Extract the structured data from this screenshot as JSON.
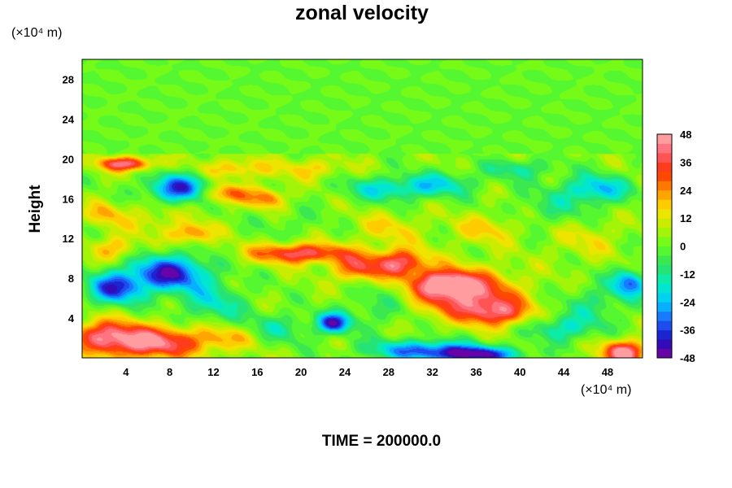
{
  "chart_data": {
    "type": "heatmap",
    "title": "zonal velocity",
    "ylabel": "Height",
    "y_unit": "(×10⁴ m)",
    "x_unit": "(×10⁴ m)",
    "footer": "TIME = 200000.0",
    "xlim": [
      0,
      51.2
    ],
    "ylim": [
      0,
      30
    ],
    "x_ticks": [
      4,
      8,
      12,
      16,
      20,
      24,
      28,
      32,
      36,
      40,
      44,
      48
    ],
    "y_ticks": [
      4,
      8,
      12,
      16,
      20,
      24,
      28
    ],
    "colorbar": {
      "min": -48,
      "max": 48,
      "ticks": [
        48,
        36,
        24,
        12,
        0,
        -12,
        -24,
        -36,
        -48
      ],
      "colors": [
        "#7f00a0",
        "#1a10c0",
        "#2060ff",
        "#00c8ff",
        "#00f0c0",
        "#30e060",
        "#60ff20",
        "#b8f000",
        "#ffe000",
        "#ff9000",
        "#ff3000",
        "#ff6070",
        "#ffb0b0"
      ]
    },
    "field": {
      "background": 3,
      "upper_layer_value": 0,
      "upper_layer_bottom": 20.5,
      "features": [
        {
          "x": 6,
          "y": 1.5,
          "value": 42,
          "sx": 5,
          "sy": 1.6
        },
        {
          "x": 2,
          "y": 2.5,
          "value": 26,
          "sx": 3,
          "sy": 1.5
        },
        {
          "x": 49.5,
          "y": 0.5,
          "value": 46,
          "sx": 2,
          "sy": 1.2
        },
        {
          "x": 36,
          "y": 0.3,
          "value": -42,
          "sx": 4,
          "sy": 0.8
        },
        {
          "x": 31,
          "y": 0.8,
          "value": -32,
          "sx": 5,
          "sy": 1.0
        },
        {
          "x": 23,
          "y": 3.5,
          "value": -42,
          "sx": 1.5,
          "sy": 1.0
        },
        {
          "x": 8,
          "y": 8.5,
          "value": -44,
          "sx": 3.5,
          "sy": 1.8
        },
        {
          "x": 3,
          "y": 7.0,
          "value": -38,
          "sx": 2.5,
          "sy": 1.6
        },
        {
          "x": 12,
          "y": 5.5,
          "value": -18,
          "sx": 3,
          "sy": 2
        },
        {
          "x": 9,
          "y": 17,
          "value": -40,
          "sx": 3,
          "sy": 1.4
        },
        {
          "x": 4,
          "y": 19.5,
          "value": 40,
          "sx": 2.5,
          "sy": 0.7
        },
        {
          "x": 13,
          "y": 16.5,
          "value": 28,
          "sx": 2.5,
          "sy": 1.0
        },
        {
          "x": 17,
          "y": 16,
          "value": 24,
          "sx": 1.5,
          "sy": 1
        },
        {
          "x": 20,
          "y": 10.5,
          "value": 38,
          "sx": 4.5,
          "sy": 1.0
        },
        {
          "x": 29,
          "y": 9.5,
          "value": 38,
          "sx": 2.5,
          "sy": 1.4
        },
        {
          "x": 25,
          "y": 9,
          "value": 28,
          "sx": 2,
          "sy": 1.3
        },
        {
          "x": 35,
          "y": 6.5,
          "value": 40,
          "sx": 4.5,
          "sy": 2.3
        },
        {
          "x": 38,
          "y": 4.5,
          "value": 30,
          "sx": 3,
          "sy": 1.3
        },
        {
          "x": 33,
          "y": 7.5,
          "value": 32,
          "sx": 2.5,
          "sy": 1.2
        },
        {
          "x": 14,
          "y": 19,
          "value": 18,
          "sx": 3,
          "sy": 1
        },
        {
          "x": 21,
          "y": 19,
          "value": 14,
          "sx": 3,
          "sy": 1
        },
        {
          "x": 28,
          "y": 17,
          "value": -22,
          "sx": 4,
          "sy": 1.2
        },
        {
          "x": 33,
          "y": 17.5,
          "value": -18,
          "sx": 3,
          "sy": 1.2
        },
        {
          "x": 47,
          "y": 17,
          "value": -26,
          "sx": 3,
          "sy": 1.4
        },
        {
          "x": 40,
          "y": 19,
          "value": -16,
          "sx": 3,
          "sy": 1
        },
        {
          "x": 43,
          "y": 15,
          "value": -10,
          "sx": 4,
          "sy": 2
        },
        {
          "x": 46,
          "y": 12,
          "value": 10,
          "sx": 3,
          "sy": 2
        },
        {
          "x": 50,
          "y": 7.5,
          "value": -34,
          "sx": 1.5,
          "sy": 1.4
        },
        {
          "x": 44,
          "y": 3,
          "value": -20,
          "sx": 3,
          "sy": 1.3
        },
        {
          "x": 47,
          "y": 5.5,
          "value": -12,
          "sx": 3,
          "sy": 2
        },
        {
          "x": 27,
          "y": 5,
          "value": -10,
          "sx": 3,
          "sy": 2
        },
        {
          "x": 18,
          "y": 3,
          "value": -14,
          "sx": 3,
          "sy": 1.5
        },
        {
          "x": 13,
          "y": 2,
          "value": 14,
          "sx": 3,
          "sy": 1.2
        },
        {
          "x": 10,
          "y": 12.5,
          "value": 24,
          "sx": 2,
          "sy": 1
        },
        {
          "x": 3,
          "y": 11,
          "value": 18,
          "sx": 2,
          "sy": 1.2
        },
        {
          "x": 6,
          "y": 14,
          "value": 10,
          "sx": 3,
          "sy": 1.5
        },
        {
          "x": 37,
          "y": 13,
          "value": 14,
          "sx": 3,
          "sy": 1.5
        },
        {
          "x": 28,
          "y": 13,
          "value": 12,
          "sx": 3,
          "sy": 1.5
        },
        {
          "x": 19,
          "y": 13.5,
          "value": -6,
          "sx": 3,
          "sy": 1.5
        },
        {
          "x": 2,
          "y": 14.5,
          "value": 16,
          "sx": 1.5,
          "sy": 1.2
        }
      ]
    }
  }
}
